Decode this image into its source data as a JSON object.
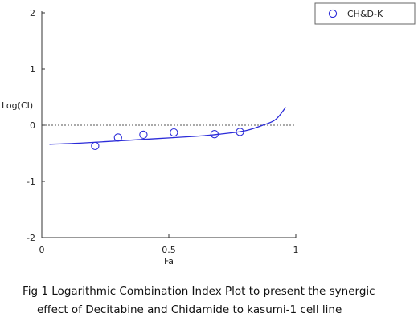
{
  "chart_data": {
    "type": "scatter",
    "xlabel": "Fa",
    "ylabel": "Log(CI)",
    "xlim": [
      0,
      1
    ],
    "ylim": [
      -2,
      2
    ],
    "x_ticks": [
      "0",
      "0.5",
      "1"
    ],
    "y_ticks": [
      "2",
      "1",
      "0",
      "-1",
      "-2"
    ],
    "reference_line": {
      "y": 0,
      "style": "dashed"
    },
    "legend": {
      "position": "top-right",
      "entries": [
        "CH&D-K"
      ]
    },
    "series": [
      {
        "name": "CH&D-K",
        "marker": "open-circle",
        "color": "#2b2bd9",
        "points": [
          {
            "x": 0.21,
            "y": -0.37
          },
          {
            "x": 0.3,
            "y": -0.22
          },
          {
            "x": 0.4,
            "y": -0.17
          },
          {
            "x": 0.52,
            "y": -0.13
          },
          {
            "x": 0.68,
            "y": -0.16
          },
          {
            "x": 0.78,
            "y": -0.12
          }
        ],
        "fit_curve": [
          {
            "x": 0.03,
            "y": -0.34
          },
          {
            "x": 0.15,
            "y": -0.32
          },
          {
            "x": 0.3,
            "y": -0.28
          },
          {
            "x": 0.45,
            "y": -0.24
          },
          {
            "x": 0.6,
            "y": -0.2
          },
          {
            "x": 0.7,
            "y": -0.16
          },
          {
            "x": 0.8,
            "y": -0.1
          },
          {
            "x": 0.87,
            "y": 0.0
          },
          {
            "x": 0.92,
            "y": 0.1
          },
          {
            "x": 0.96,
            "y": 0.32
          }
        ]
      }
    ]
  },
  "caption": {
    "line1": "Fig 1  Logarithmic Combination Index Plot to present the synergic",
    "line2": "effect of Decitabine and Chidamide to kasumi-1 cell line"
  }
}
